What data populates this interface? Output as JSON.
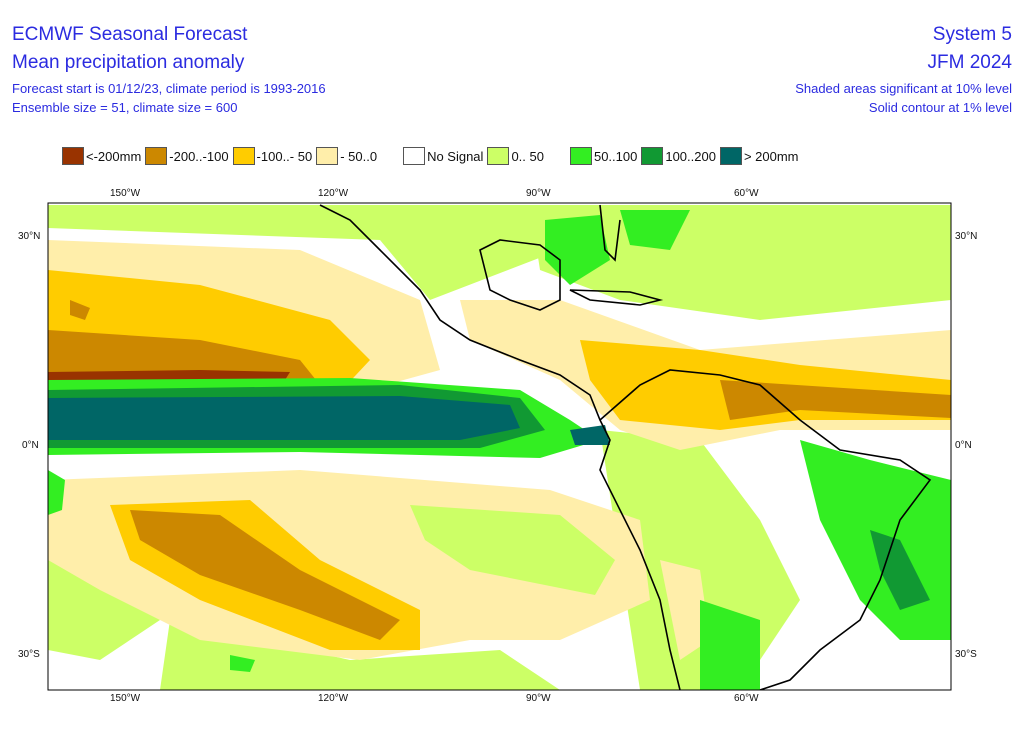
{
  "header": {
    "title": "ECMWF Seasonal Forecast",
    "subtitle": "Mean precipitation anomaly",
    "line1": "Forecast start is 01/12/23, climate period is 1993-2016",
    "line2": "Ensemble size = 51, climate size = 600",
    "system": "System 5",
    "period": "JFM 2024",
    "note1": "Shaded areas significant at 10% level",
    "note2": "Solid contour at 1% level"
  },
  "legend": [
    {
      "label": "<-200mm",
      "color": "#993300"
    },
    {
      "label": "-200..-100",
      "color": "#cc8800"
    },
    {
      "label": "-100..- 50",
      "color": "#ffcc00"
    },
    {
      "label": "- 50..0",
      "color": "#ffeeaa"
    },
    {
      "label": "No Signal",
      "color": "#ffffff"
    },
    {
      "label": "0.. 50",
      "color": "#ccff66"
    },
    {
      "label": "50..100",
      "color": "#33ee22"
    },
    {
      "label": "100..200",
      "color": "#119933"
    },
    {
      "label": "> 200mm",
      "color": "#006666"
    }
  ],
  "axes": {
    "lon_labels": [
      "150°W",
      "120°W",
      "90°W",
      "60°W"
    ],
    "lat_labels": [
      "30°N",
      "0°N",
      "30°S"
    ]
  }
}
